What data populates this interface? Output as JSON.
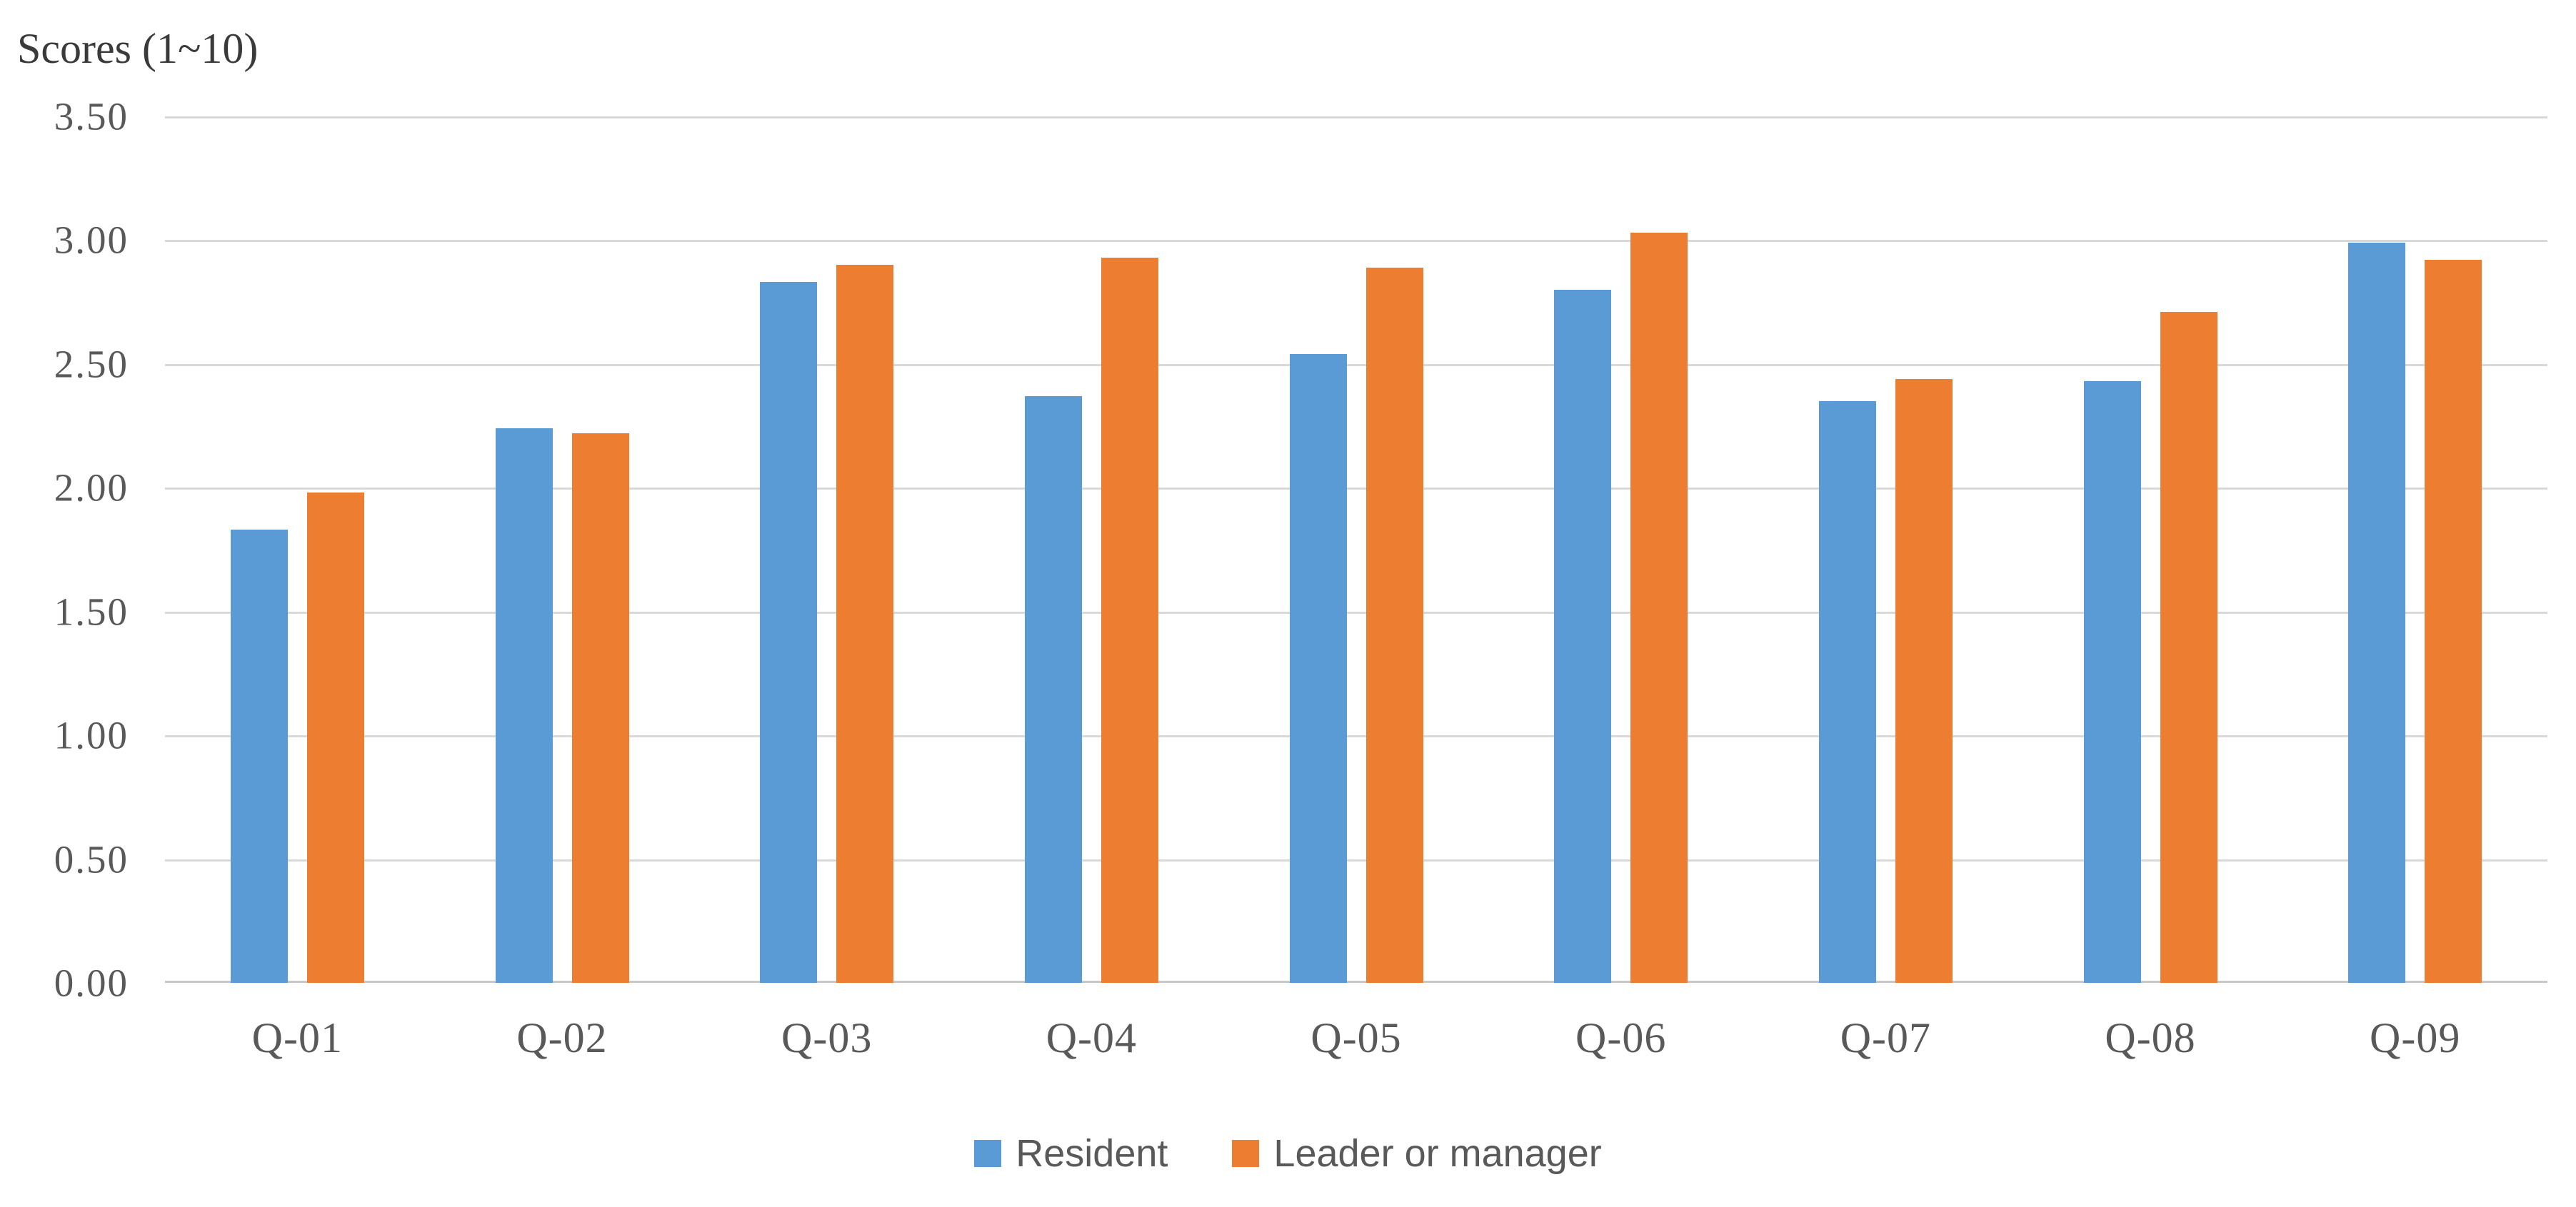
{
  "chart_data": {
    "type": "bar",
    "title": "Scores (1~10)",
    "categories": [
      "Q-01",
      "Q-02",
      "Q-03",
      "Q-04",
      "Q-05",
      "Q-06",
      "Q-07",
      "Q-08",
      "Q-09"
    ],
    "series": [
      {
        "name": "Resident",
        "color": "#5B9BD5",
        "values": [
          1.83,
          2.24,
          2.83,
          2.37,
          2.54,
          2.8,
          2.35,
          2.43,
          2.99
        ]
      },
      {
        "name": "Leader or manager",
        "color": "#ED7D31",
        "values": [
          1.98,
          2.22,
          2.9,
          2.93,
          2.89,
          3.03,
          2.44,
          2.71,
          2.92
        ]
      }
    ],
    "ylim": [
      0,
      3.5
    ],
    "y_tick_step": 0.5,
    "y_ticks": [
      "3.50",
      "3.00",
      "2.50",
      "2.00",
      "1.50",
      "1.00",
      "0.50",
      "0.00"
    ],
    "grid": "horizontal",
    "legend_position": "bottom",
    "colors": {
      "gridline": "#D9D9D9",
      "axis_line": "#C8C8C8",
      "tick_text": "#595959",
      "title_text": "#3A3A3A"
    }
  }
}
